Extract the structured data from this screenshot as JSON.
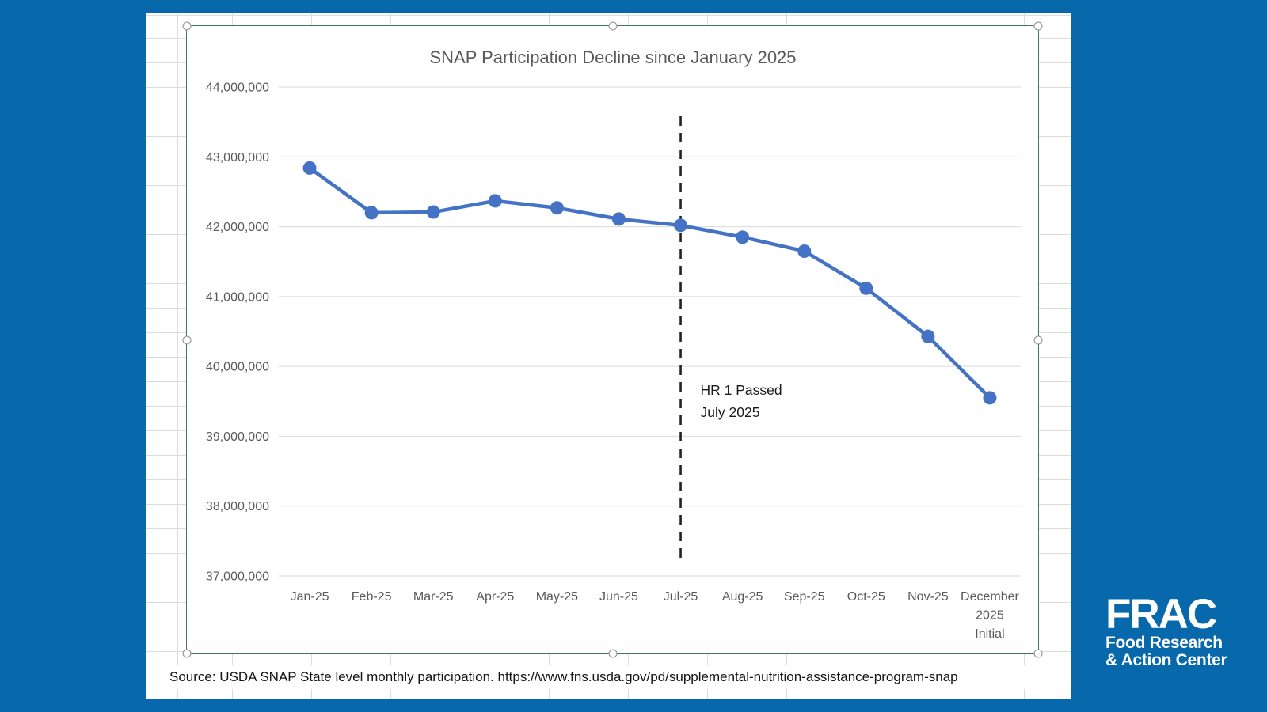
{
  "page": {
    "background_color": "#0868ac"
  },
  "spreadsheet": {
    "grid_color": "#dcdcdc",
    "selection_border_color": "#3e7b51"
  },
  "chart_data": {
    "type": "line",
    "title": "SNAP Participation Decline since January 2025",
    "categories": [
      "Jan-25",
      "Feb-25",
      "Mar-25",
      "Apr-25",
      "May-25",
      "Jun-25",
      "Jul-25",
      "Aug-25",
      "Sep-25",
      "Oct-25",
      "Nov-25",
      "December 2025 Initial"
    ],
    "xtick_lines": [
      [
        "Jan-25"
      ],
      [
        "Feb-25"
      ],
      [
        "Mar-25"
      ],
      [
        "Apr-25"
      ],
      [
        "May-25"
      ],
      [
        "Jun-25"
      ],
      [
        "Jul-25"
      ],
      [
        "Aug-25"
      ],
      [
        "Sep-25"
      ],
      [
        "Oct-25"
      ],
      [
        "Nov-25"
      ],
      [
        "December",
        "2025",
        "Initial"
      ]
    ],
    "series": [
      {
        "name": "SNAP participation",
        "color": "#4472c4",
        "values": [
          42840000,
          42200000,
          42210000,
          42370000,
          42270000,
          42110000,
          42020000,
          41850000,
          41650000,
          41120000,
          40430000,
          39550000
        ]
      }
    ],
    "ylim": [
      37000000,
      44000000
    ],
    "ytick_step": 1000000,
    "ytick_labels": [
      "37,000,000",
      "38,000,000",
      "39,000,000",
      "40,000,000",
      "41,000,000",
      "42,000,000",
      "43,000,000",
      "44,000,000"
    ],
    "grid": "horizontal",
    "gridline_color": "#d9d9d9",
    "axis_label_color": "#595959",
    "legend": "none",
    "annotation": {
      "lines": [
        "HR 1 Passed",
        "July 2025"
      ],
      "x_category": "Jul-25",
      "line_style": "dashed",
      "line_color": "#222222"
    }
  },
  "source_note": "Source: USDA SNAP State level monthly participation. https://www.fns.usda.gov/pd/supplemental-nutrition-assistance-program-snap",
  "logo": {
    "acronym": "FRAC",
    "line1": "Food Research",
    "line2": "& Action Center"
  }
}
